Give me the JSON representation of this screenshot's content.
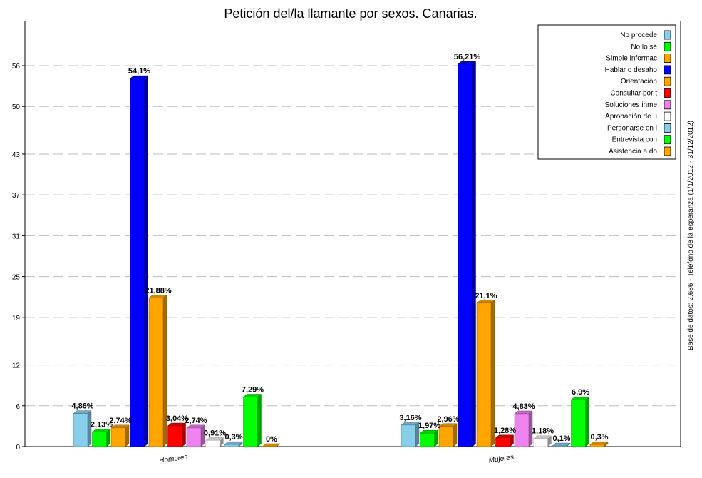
{
  "chart_data": {
    "type": "bar",
    "title": "Petición del/la llamante por sexos. Canarias.",
    "side_note": "Base de datos: 2.686  -  Teléfono de la esperanza   (1/1/2012 - 31/12/2012)",
    "categories": [
      "Hombres",
      "Mujeres"
    ],
    "y_ticks": [
      0,
      6,
      12,
      19,
      25,
      31,
      37,
      43,
      50,
      56
    ],
    "ylim": [
      0,
      62.5
    ],
    "grid": true,
    "legend_position": "top-right",
    "series": [
      {
        "name": "No procede",
        "color": "#87CEEB",
        "values": [
          4.86,
          3.16
        ],
        "labels": [
          "4,86%",
          "3,16%"
        ]
      },
      {
        "name": "No lo sé",
        "color": "#00FF00",
        "values": [
          2.13,
          1.97
        ],
        "labels": [
          "2,13%",
          "1,97%"
        ]
      },
      {
        "name": "Simple informac",
        "color": "#FFA500",
        "values": [
          2.74,
          2.96
        ],
        "labels": [
          "2,74%",
          "2,96%"
        ]
      },
      {
        "name": "Hablar o desaho",
        "color": "#0000FF",
        "values": [
          54.1,
          56.21
        ],
        "labels": [
          "54,1%",
          "56,21%"
        ]
      },
      {
        "name": "Orientación",
        "color": "#FFA500",
        "values": [
          21.88,
          21.1
        ],
        "labels": [
          "21,88%",
          "21,1%"
        ]
      },
      {
        "name": "Consultar por t",
        "color": "#FF0000",
        "values": [
          3.04,
          1.28
        ],
        "labels": [
          "3,04%",
          "1,28%"
        ]
      },
      {
        "name": "Soluciones inme",
        "color": "#EE82EE",
        "values": [
          2.74,
          4.83
        ],
        "labels": [
          "2,74%",
          "4,83%"
        ]
      },
      {
        "name": "Aprobación de u",
        "color": "#FFFFFF",
        "values": [
          0.91,
          1.18
        ],
        "labels": [
          "0,91%",
          "1,18%"
        ]
      },
      {
        "name": "Personarse en l",
        "color": "#87CEEB",
        "values": [
          0.3,
          0.1
        ],
        "labels": [
          "0,3%",
          "0,1%"
        ]
      },
      {
        "name": "Entrevista con",
        "color": "#00FF00",
        "values": [
          7.29,
          6.9
        ],
        "labels": [
          "7,29%",
          "6,9%"
        ]
      },
      {
        "name": "Asistencia a do",
        "color": "#FFA500",
        "values": [
          0,
          0.3
        ],
        "labels": [
          "0%",
          "0,3%"
        ]
      }
    ]
  }
}
